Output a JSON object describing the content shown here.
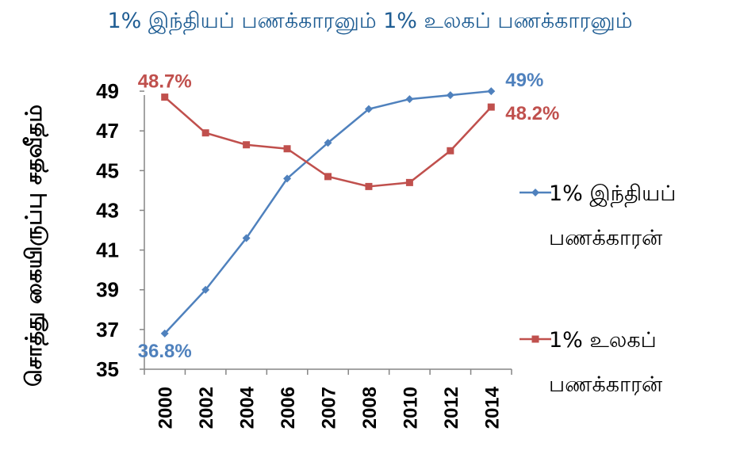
{
  "chart_data": {
    "type": "line",
    "title": "1% இந்தியப் பணக்காரனும் 1% உலகப் பணக்காரனும்",
    "ylabel": "சொத்து கையிருப்பு சதவீதம்",
    "xlabel": "",
    "categories": [
      "2000",
      "2002",
      "2004",
      "2006",
      "2007",
      "2008",
      "2010",
      "2012",
      "2014"
    ],
    "ylim": [
      35,
      50
    ],
    "yticks": [
      "35",
      "37",
      "39",
      "41",
      "43",
      "45",
      "47",
      "49"
    ],
    "grid": false,
    "legend_position": "right",
    "series": [
      {
        "name": "1% இந்தியப் பணக்காரன்",
        "color": "#4f81bd",
        "marker": "diamond",
        "values": [
          36.8,
          39.0,
          41.6,
          44.6,
          46.4,
          48.1,
          48.6,
          48.8,
          49.0
        ],
        "labels": [
          "36.8%",
          "",
          "",
          "",
          "",
          "",
          "",
          "",
          "49%"
        ]
      },
      {
        "name": "1% உலகப் பணக்காரன்",
        "color": "#c0504d",
        "marker": "square",
        "values": [
          48.7,
          46.9,
          46.3,
          46.1,
          44.7,
          44.2,
          44.4,
          46.0,
          48.2
        ],
        "labels": [
          "48.7%",
          "",
          "",
          "",
          "",
          "",
          "",
          "",
          "48.2%"
        ]
      }
    ],
    "legend": [
      {
        "line1": "1%  இந்தியப்",
        "line2": "பணக்காரன்"
      },
      {
        "line1": "1%  உலகப்",
        "line2": "பணக்காரன்"
      }
    ]
  }
}
